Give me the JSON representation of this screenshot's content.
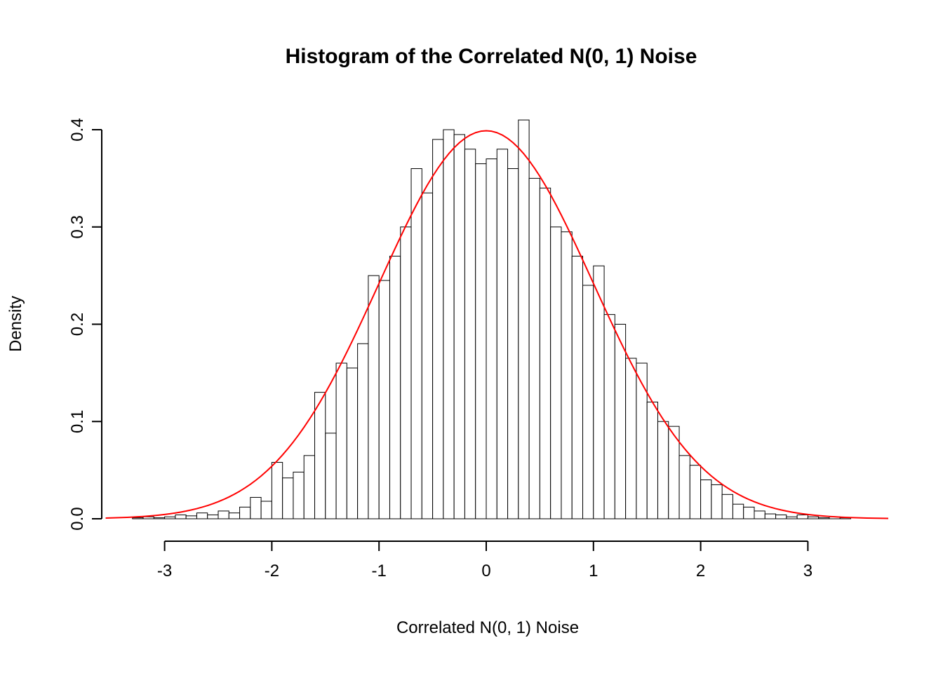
{
  "chart_data": {
    "type": "bar",
    "subtype": "histogram",
    "title": "Histogram of the Correlated N(0, 1) Noise",
    "xlabel": "Correlated N(0, 1) Noise",
    "ylabel": "Density",
    "x_ticks": [
      -3,
      -2,
      -1,
      0,
      1,
      2,
      3
    ],
    "x_tick_labels": [
      "-3",
      "-2",
      "-1",
      "0",
      "1",
      "2",
      "3"
    ],
    "y_ticks": [
      0.0,
      0.1,
      0.2,
      0.3,
      0.4
    ],
    "y_tick_labels": [
      "0.0",
      "0.1",
      "0.2",
      "0.3",
      "0.4"
    ],
    "xlim": [
      -3.6,
      3.8
    ],
    "ylim": [
      0,
      0.41
    ],
    "grid": "off",
    "bin_start": -3.3,
    "bin_width": 0.1,
    "densities": [
      0.001,
      0.002,
      0.001,
      0.002,
      0.004,
      0.003,
      0.006,
      0.004,
      0.008,
      0.006,
      0.012,
      0.022,
      0.018,
      0.058,
      0.042,
      0.048,
      0.065,
      0.13,
      0.088,
      0.16,
      0.155,
      0.18,
      0.25,
      0.245,
      0.27,
      0.3,
      0.36,
      0.335,
      0.39,
      0.4,
      0.395,
      0.38,
      0.365,
      0.37,
      0.38,
      0.36,
      0.41,
      0.35,
      0.34,
      0.3,
      0.295,
      0.27,
      0.24,
      0.26,
      0.21,
      0.2,
      0.165,
      0.16,
      0.12,
      0.1,
      0.095,
      0.065,
      0.055,
      0.04,
      0.035,
      0.025,
      0.015,
      0.012,
      0.008,
      0.005,
      0.004,
      0.002,
      0.004,
      0.002,
      0.001,
      0.002,
      0.001
    ],
    "overlay_curve": {
      "type": "normal_density",
      "mean": 0,
      "sd": 1,
      "color": "#FF0000",
      "x_range": [
        -3.55,
        3.75
      ]
    },
    "bar_fill": "#FFFFFF",
    "bar_stroke": "#000000",
    "axis_color": "#000000"
  }
}
